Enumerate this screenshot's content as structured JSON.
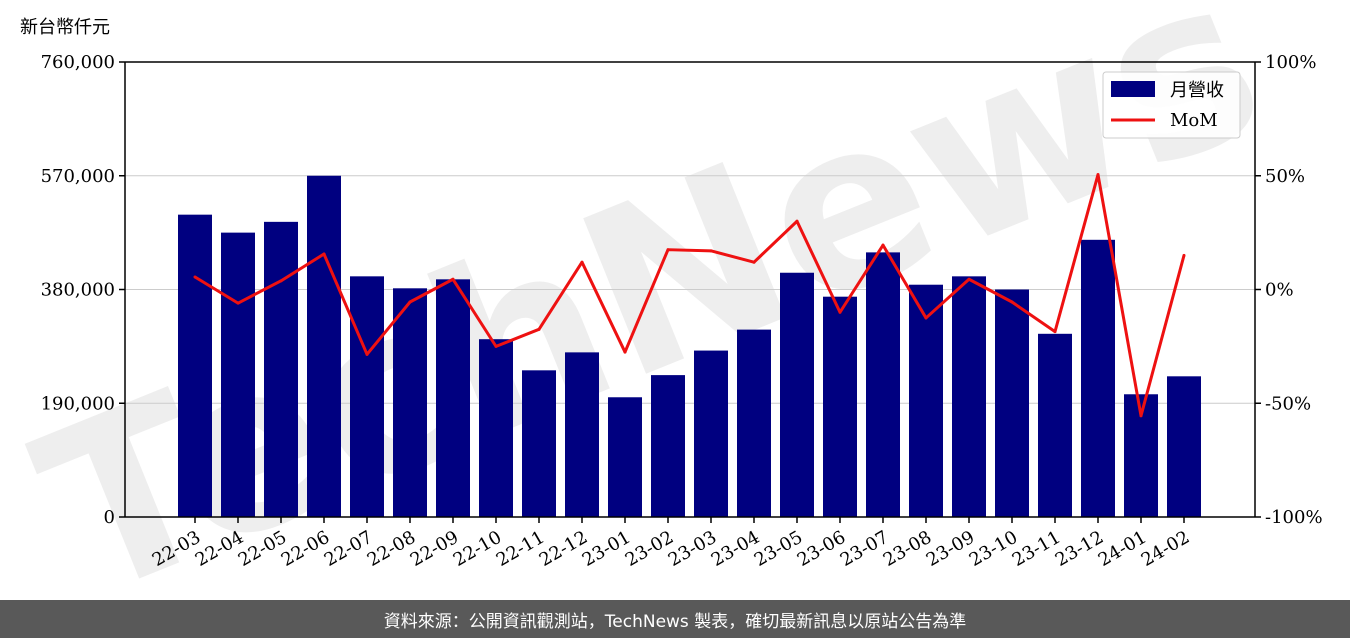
{
  "chart_data": {
    "type": "bar",
    "unit_label": "新台幣仟元",
    "categories": [
      "22-03",
      "22-04",
      "22-05",
      "22-06",
      "22-07",
      "22-08",
      "22-09",
      "22-10",
      "22-11",
      "22-12",
      "23-01",
      "23-02",
      "23-03",
      "23-04",
      "23-05",
      "23-06",
      "23-07",
      "23-08",
      "23-09",
      "23-10",
      "23-11",
      "23-12",
      "24-01",
      "24-02"
    ],
    "series": [
      {
        "name": "月營收",
        "type": "bar",
        "axis": "left",
        "color": "#000080",
        "values": [
          505000,
          475000,
          493000,
          570000,
          402000,
          382000,
          397000,
          297000,
          245000,
          275000,
          200000,
          237000,
          278000,
          313000,
          408000,
          368000,
          442000,
          388000,
          402000,
          380000,
          306000,
          463000,
          205000,
          235000
        ]
      },
      {
        "name": "MoM",
        "type": "line",
        "axis": "right",
        "color": "#ee1111",
        "values": [
          5.5,
          -6.0,
          3.8,
          15.6,
          -28.5,
          -5.5,
          4.5,
          -25.0,
          -17.5,
          12.0,
          -27.5,
          17.5,
          17.0,
          12.0,
          30.0,
          -10.0,
          19.5,
          -12.5,
          4.5,
          -5.5,
          -18.5,
          50.5,
          -55.5,
          15.0
        ]
      }
    ],
    "y_left": {
      "ylim": [
        0,
        760000
      ],
      "ticks": [
        0,
        190000,
        380000,
        570000,
        760000
      ],
      "tick_labels": [
        "0",
        "190,000",
        "380,000",
        "570,000",
        "760,000"
      ]
    },
    "y_right": {
      "ylim": [
        -100,
        100
      ],
      "ticks": [
        -100,
        -50,
        0,
        50,
        100
      ],
      "tick_labels": [
        "-100%",
        "-50%",
        "0%",
        "50%",
        "100%"
      ]
    },
    "grid": "horizontal",
    "legend_position": "top-right"
  },
  "watermark": "TechNews",
  "footer_text": "資料來源：公開資訊觀測站，TechNews 製表，確切最新訊息以原站公告為準"
}
